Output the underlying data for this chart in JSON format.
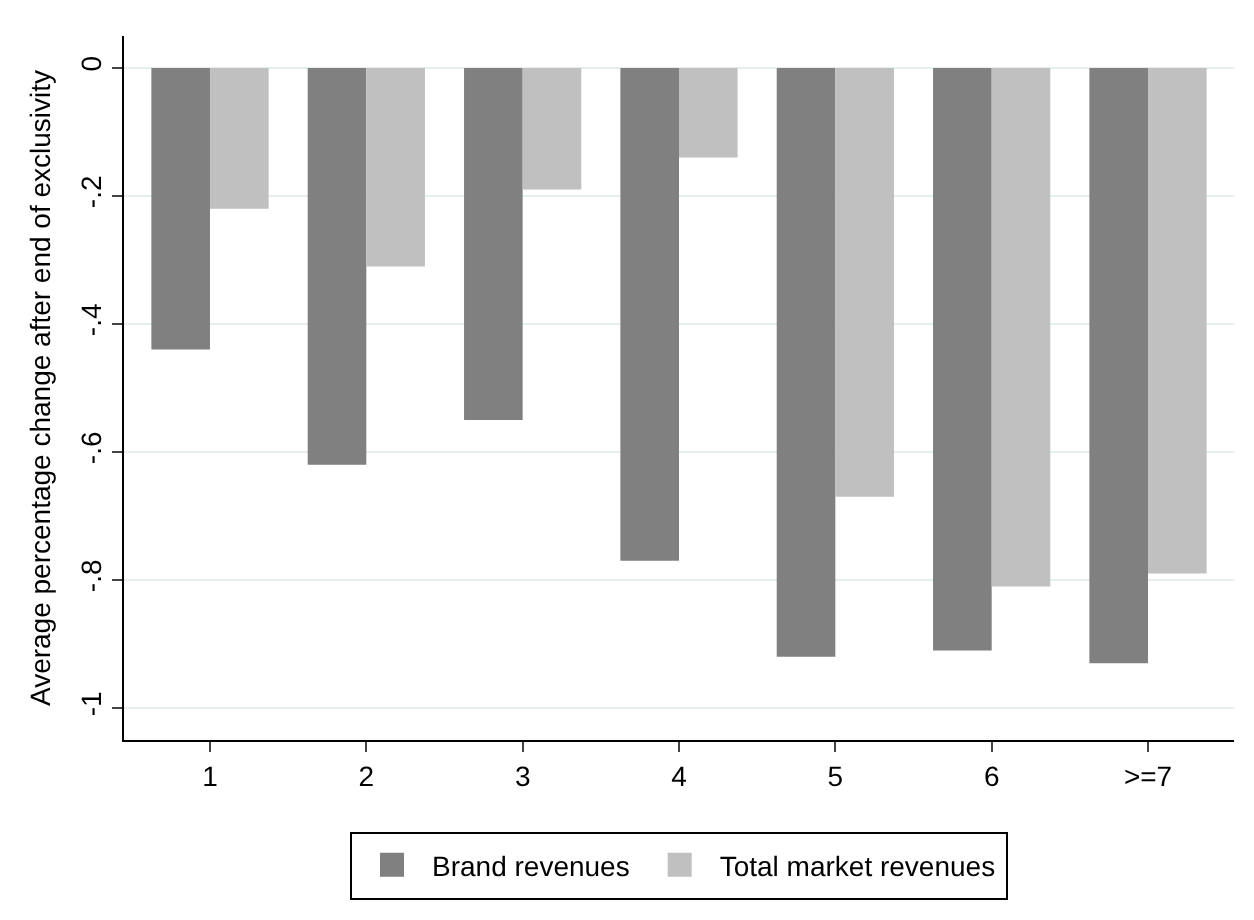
{
  "chart_data": {
    "type": "bar",
    "ylabel": "Average percentage change after end of exclusivity",
    "categories": [
      "1",
      "2",
      "3",
      "4",
      "5",
      "6",
      ">=7"
    ],
    "series": [
      {
        "name": "Brand revenues",
        "color": "#808080",
        "values": [
          -0.44,
          -0.62,
          -0.55,
          -0.77,
          -0.92,
          -0.91,
          -0.93
        ]
      },
      {
        "name": "Total market revenues",
        "color": "#c0c0c0",
        "values": [
          -0.22,
          -0.31,
          -0.19,
          -0.14,
          -0.67,
          -0.81,
          -0.79
        ]
      }
    ],
    "ylim": [
      -1.05,
      0.05
    ],
    "yticks": [
      {
        "value": -1,
        "label": "-1"
      },
      {
        "value": -0.8,
        "label": "-.8"
      },
      {
        "value": -0.6,
        "label": "-.6"
      },
      {
        "value": -0.4,
        "label": "-.4"
      },
      {
        "value": -0.2,
        "label": "-.2"
      },
      0
    ],
    "grid": "y",
    "legend": "bottom"
  }
}
